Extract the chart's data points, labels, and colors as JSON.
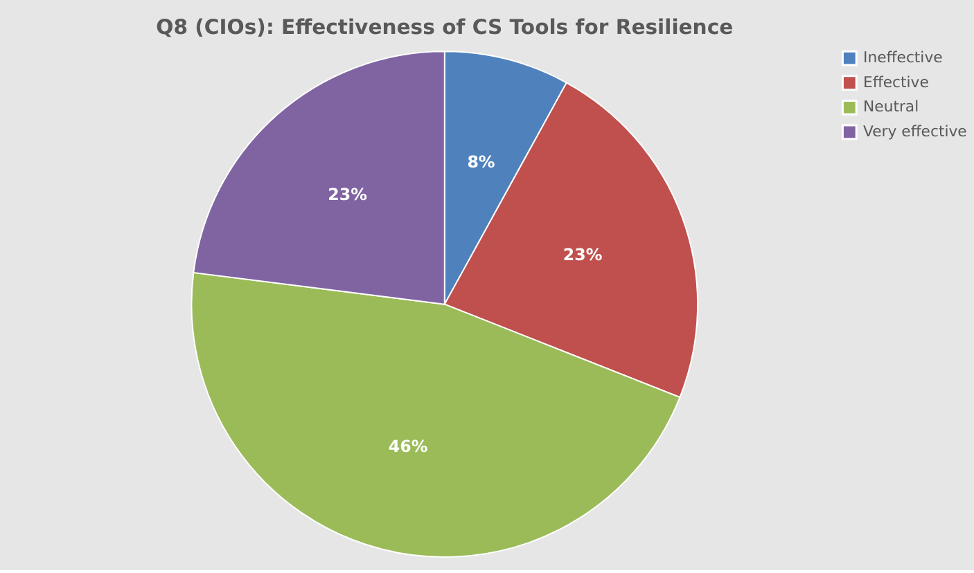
{
  "chart_data": {
    "type": "pie",
    "title": "Q8 (CIOs): Effectiveness of CS Tools for Resilience",
    "categories": [
      "Ineffective",
      "Effective",
      "Neutral",
      "Very effective"
    ],
    "values": [
      8,
      23,
      46,
      23
    ],
    "value_labels": [
      "8%",
      "23%",
      "46%",
      "23%"
    ],
    "colors": [
      "#4f81bd",
      "#c0504d",
      "#9bbb59",
      "#8064a2"
    ],
    "legend": "right"
  }
}
